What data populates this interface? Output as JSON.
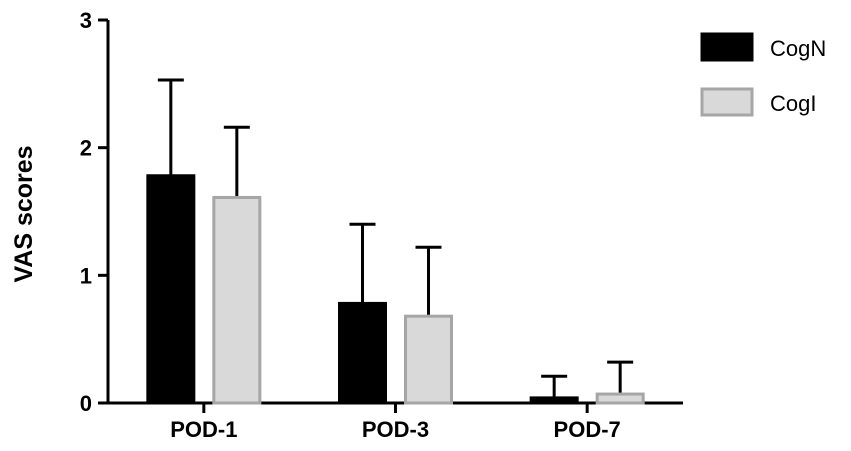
{
  "chart_data": {
    "type": "bar",
    "ylabel": "VAS scores",
    "xlabel": "",
    "ylim": [
      0,
      3
    ],
    "yticks": [
      0,
      1,
      2,
      3
    ],
    "categories": [
      "POD-1",
      "POD-3",
      "POD-7"
    ],
    "series": [
      {
        "name": "CogN",
        "values": [
          1.78,
          0.78,
          0.04
        ],
        "errors": [
          0.75,
          0.62,
          0.17
        ],
        "fill": "#000000",
        "stroke": "#000000"
      },
      {
        "name": "CogI",
        "values": [
          1.61,
          0.68,
          0.07
        ],
        "errors": [
          0.55,
          0.54,
          0.25
        ],
        "fill": "#d9d9d9",
        "stroke": "#a6a6a6"
      }
    ],
    "legend_position": "top-right",
    "grid": false
  }
}
